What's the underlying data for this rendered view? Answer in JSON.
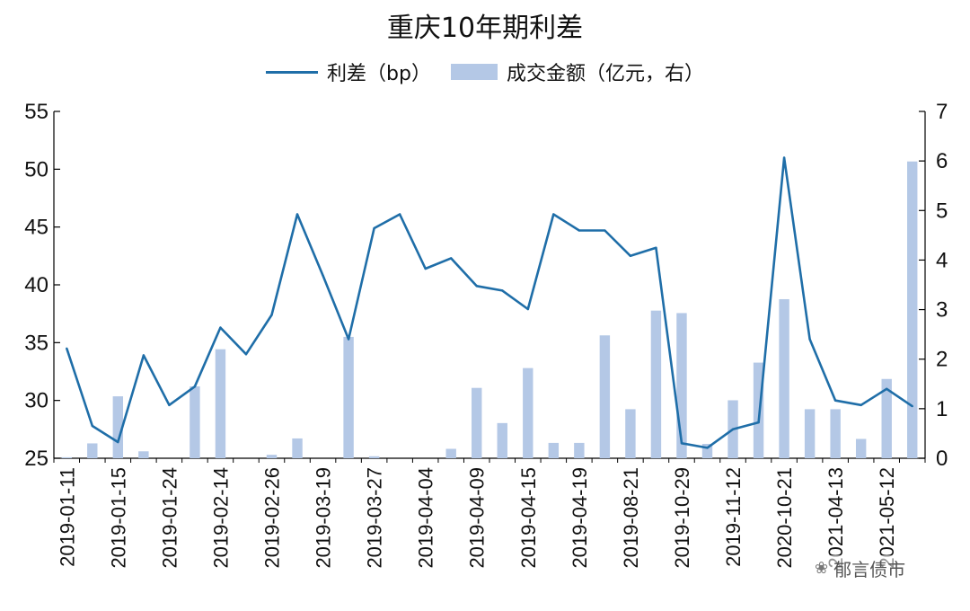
{
  "chart_data": {
    "type": "bar+line",
    "title": "重庆10年期利差",
    "legend_position": "top",
    "grid": false,
    "categories": [
      "2019-01-11",
      "",
      "2019-01-15",
      "",
      "2019-01-24",
      "",
      "2019-02-14",
      "",
      "2019-02-26",
      "",
      "2019-03-19",
      "",
      "2019-03-27",
      "",
      "2019-04-04",
      "",
      "2019-04-09",
      "",
      "2019-04-15",
      "",
      "2019-04-19",
      "",
      "2019-08-21",
      "",
      "2019-10-29",
      "",
      "2019-11-12",
      "",
      "2020-10-21",
      "",
      "2021-04-13",
      "",
      "2021-05-12",
      ""
    ],
    "series": [
      {
        "name": "利差（bp）",
        "kind": "line",
        "axis": "left",
        "color": "#1f6ea8",
        "values": [
          34.5,
          27.8,
          26.4,
          33.9,
          29.6,
          31.2,
          36.3,
          34.0,
          37.4,
          46.1,
          40.8,
          35.3,
          44.9,
          46.1,
          41.4,
          42.3,
          39.9,
          39.5,
          37.9,
          46.1,
          44.7,
          44.7,
          42.5,
          43.2,
          26.3,
          25.9,
          27.5,
          28.1,
          51.0,
          35.3,
          30.0,
          29.6,
          31.0,
          29.5
        ]
      },
      {
        "name": "成交金额（亿元，右）",
        "kind": "bar",
        "axis": "right",
        "color": "#b4c8e6",
        "values": [
          0.02,
          0.3,
          1.25,
          0.14,
          0,
          1.45,
          2.2,
          0,
          0.07,
          0.4,
          0,
          2.45,
          0.04,
          0,
          0,
          0.19,
          1.42,
          0.71,
          1.82,
          0.31,
          0.31,
          2.48,
          0.99,
          2.98,
          2.93,
          0.29,
          1.17,
          1.93,
          3.21,
          0.99,
          0.99,
          0.39,
          1.6,
          5.99
        ]
      }
    ],
    "y_left": {
      "min": 25,
      "max": 55,
      "ticks": [
        25,
        30,
        35,
        40,
        45,
        50,
        55
      ]
    },
    "y_right": {
      "min": 0,
      "max": 7,
      "ticks": [
        0,
        1,
        2,
        3,
        4,
        5,
        6,
        7
      ]
    }
  },
  "watermark": {
    "icon": "wechat-icon",
    "text": "郁言债市"
  }
}
